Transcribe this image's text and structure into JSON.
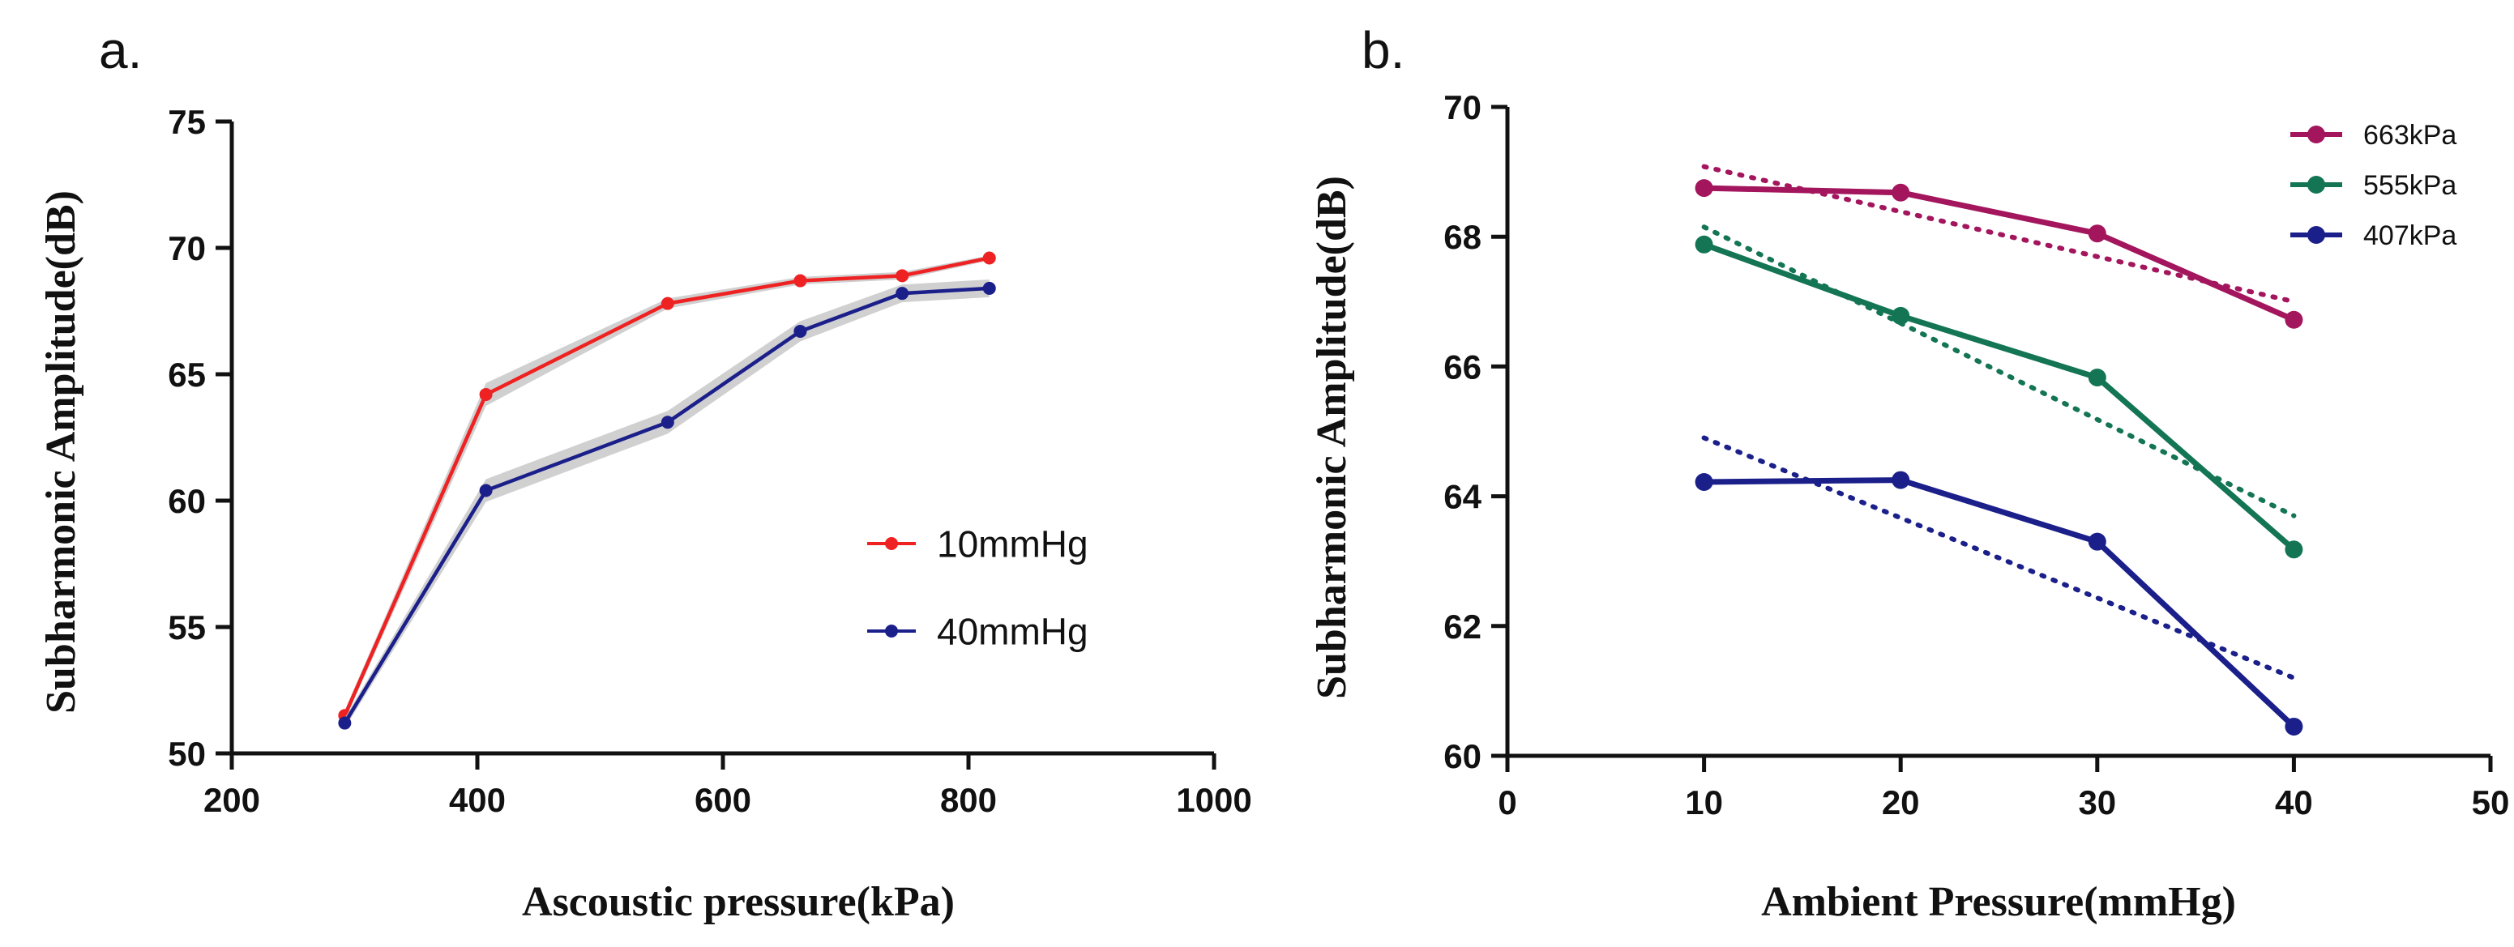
{
  "chart_data": [
    {
      "panel_label": "a.",
      "type": "line",
      "title": "",
      "xlabel": "Ascoustic pressure(kPa)",
      "ylabel": "Subharmonic Amplitude(dB)",
      "xlim": [
        200,
        1000
      ],
      "ylim": [
        50,
        75
      ],
      "xticks": [
        200,
        400,
        600,
        800,
        1000
      ],
      "yticks": [
        50,
        55,
        60,
        65,
        70,
        75
      ],
      "legend_position": "middle-right",
      "series": [
        {
          "name": "10mmHg",
          "color": "#ee2222",
          "x": [
            292,
            407,
            555,
            663,
            746,
            817
          ],
          "y": [
            51.5,
            64.2,
            67.8,
            68.7,
            68.9,
            69.6
          ],
          "band": [
            0.2,
            0.45,
            0.2,
            0.15,
            0.15,
            0.1
          ]
        },
        {
          "name": "40mmHg",
          "color": "#1b1f8a",
          "x": [
            292,
            407,
            555,
            663,
            746,
            817
          ],
          "y": [
            51.2,
            60.4,
            63.1,
            66.7,
            68.2,
            68.4
          ],
          "band": [
            0.2,
            0.45,
            0.45,
            0.4,
            0.35,
            0.35
          ]
        }
      ]
    },
    {
      "panel_label": "b.",
      "type": "line",
      "title": "",
      "xlabel": "Ambient Pressure(mmHg)",
      "ylabel": "Subharmonic Amplitude(dB)",
      "xlim": [
        0,
        50
      ],
      "ylim": [
        60,
        70
      ],
      "xticks": [
        0,
        10,
        20,
        30,
        40,
        50
      ],
      "yticks": [
        60,
        62,
        64,
        66,
        68,
        70
      ],
      "legend_position": "top-right",
      "series": [
        {
          "name": "663kPa",
          "color": "#a3155d",
          "x": [
            10,
            20,
            30,
            40
          ],
          "y": [
            68.75,
            68.68,
            68.05,
            66.72
          ],
          "trend": [
            [
              10,
              69.08
            ],
            [
              40,
              67.0
            ]
          ]
        },
        {
          "name": "555kPa",
          "color": "#137553",
          "x": [
            10,
            20,
            30,
            40
          ],
          "y": [
            67.88,
            66.78,
            65.83,
            63.18
          ],
          "trend": [
            [
              10,
              68.15
            ],
            [
              40,
              63.7
            ]
          ]
        },
        {
          "name": "407kPa",
          "color": "#1b1f8a",
          "x": [
            10,
            20,
            30,
            40
          ],
          "y": [
            64.22,
            64.25,
            63.3,
            60.45
          ],
          "trend": [
            [
              10,
              64.9
            ],
            [
              40,
              61.2
            ]
          ]
        }
      ]
    }
  ]
}
